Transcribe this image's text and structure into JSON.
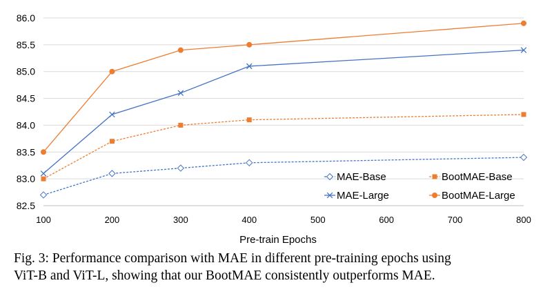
{
  "chart_data": {
    "type": "line",
    "title": "",
    "xlabel": "Pre-train Epochs",
    "ylabel": "",
    "x_ticks": [
      100,
      200,
      300,
      400,
      500,
      600,
      700,
      800
    ],
    "y_ticks": [
      "82.5",
      "83.0",
      "83.5",
      "84.0",
      "84.5",
      "85.0",
      "85.5",
      "86.0"
    ],
    "xlim": [
      100,
      800
    ],
    "ylim": [
      82.5,
      86.0
    ],
    "grid": "horizontal",
    "legend_position": "bottom-right",
    "series": [
      {
        "name": "MAE-Base",
        "color": "#4472C4",
        "marker": "diamond",
        "line": "dashed",
        "x": [
          100,
          200,
          300,
          400,
          800
        ],
        "y": [
          82.7,
          83.1,
          83.2,
          83.3,
          83.4
        ]
      },
      {
        "name": "BootMAE-Base",
        "color": "#ED7D31",
        "marker": "square",
        "line": "dashed",
        "x": [
          100,
          200,
          300,
          400,
          800
        ],
        "y": [
          83.0,
          83.7,
          84.0,
          84.1,
          84.2
        ]
      },
      {
        "name": "MAE-Large",
        "color": "#4472C4",
        "marker": "x",
        "line": "solid",
        "x": [
          100,
          200,
          300,
          400,
          800
        ],
        "y": [
          83.1,
          84.2,
          84.6,
          85.1,
          85.4
        ]
      },
      {
        "name": "BootMAE-Large",
        "color": "#ED7D31",
        "marker": "circle",
        "line": "solid",
        "x": [
          100,
          200,
          300,
          400,
          800
        ],
        "y": [
          83.5,
          85.0,
          85.4,
          85.5,
          85.9
        ]
      }
    ]
  },
  "caption": {
    "line1": "Fig. 3: Performance comparison with MAE in different pre-training epochs using",
    "line2": "ViT-B and ViT-L, showing that our BootMAE consistently outperforms MAE."
  }
}
